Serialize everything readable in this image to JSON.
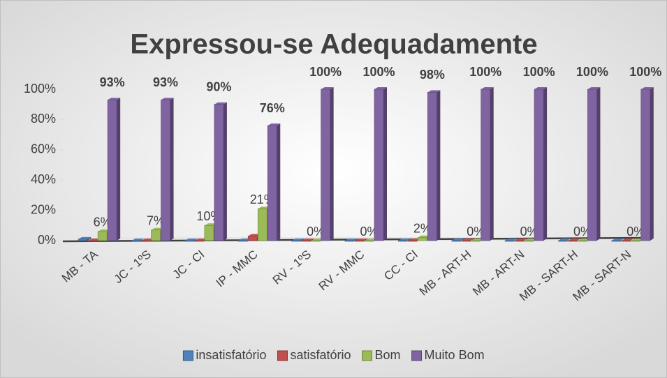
{
  "chart_data": {
    "type": "bar3d",
    "title": "Expressou-se Adequadamente",
    "categories": [
      "MB - TA",
      "JC - 1ºS",
      "JC - CI",
      "IP - MMC",
      "RV - 1ºS",
      "RV - MMC",
      "CC - CI",
      "MB - ART-H",
      "MB - ART-N",
      "MB - SART-H",
      "MB - SART-N"
    ],
    "series": [
      {
        "name": "insatisfatório",
        "color": "#4f81bd",
        "values": [
          1,
          0,
          0,
          0,
          0,
          0,
          0,
          0,
          0,
          0,
          0
        ]
      },
      {
        "name": "satisfatório",
        "color": "#c0504d",
        "values": [
          0,
          0,
          0,
          3,
          0,
          0,
          0,
          0,
          0,
          0,
          0
        ]
      },
      {
        "name": "Bom",
        "color": "#9bbb59",
        "values": [
          6,
          7,
          10,
          21,
          0,
          0,
          2,
          0,
          0,
          0,
          0
        ],
        "value_labels": [
          "6%",
          "7%",
          "10%",
          "21%",
          "0%",
          "0%",
          "2%",
          "0%",
          "0%",
          "0%",
          "0%"
        ]
      },
      {
        "name": "Muito Bom",
        "color": "#8064a2",
        "values": [
          93,
          93,
          90,
          76,
          100,
          100,
          98,
          100,
          100,
          100,
          100
        ],
        "value_labels": [
          "93%",
          "93%",
          "90%",
          "76%",
          "100%",
          "100%",
          "98%",
          "100%",
          "100%",
          "100%",
          "100%"
        ]
      }
    ],
    "ylim": [
      0,
      100
    ],
    "yticks": [
      {
        "value": 0,
        "label": "0%"
      },
      {
        "value": 20,
        "label": "20%"
      },
      {
        "value": 40,
        "label": "40%"
      },
      {
        "value": 60,
        "label": "60%"
      },
      {
        "value": 80,
        "label": "80%"
      },
      {
        "value": 100,
        "label": "100%"
      }
    ],
    "legend": "bottom"
  }
}
